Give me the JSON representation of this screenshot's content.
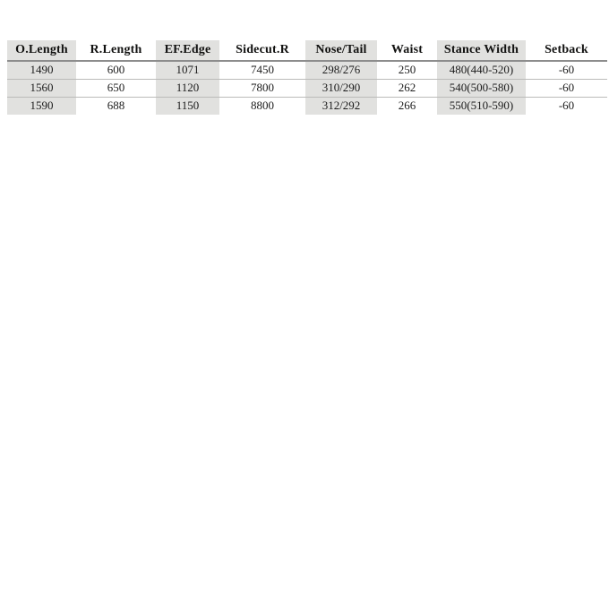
{
  "chart_data": {
    "type": "table",
    "columns": [
      "O.Length",
      "R.Length",
      "EF.Edge",
      "Sidecut.R",
      "Nose/Tail",
      "Waist",
      "Stance Width",
      "Setback"
    ],
    "rows": [
      [
        "1490",
        "600",
        "1071",
        "7450",
        "298/276",
        "250",
        "480(440-520)",
        "-60"
      ],
      [
        "1560",
        "650",
        "1120",
        "7800",
        "310/290",
        "262",
        "540(500-580)",
        "-60"
      ],
      [
        "1590",
        "688",
        "1150",
        "8800",
        "312/292",
        "266",
        "550(510-590)",
        "-60"
      ]
    ],
    "shaded_columns": [
      "O.Length",
      "EF.Edge",
      "Nose/Tail",
      "Stance Width"
    ],
    "layout": {
      "grid": "horizontal-rules-only",
      "header_position": "top"
    },
    "colors": {
      "column_band": "#e1e1df",
      "header_rule": "#8d8d8d",
      "row_rule": "#bbbbb9",
      "text": "#1c1c1c",
      "background": "#ffffff"
    }
  }
}
